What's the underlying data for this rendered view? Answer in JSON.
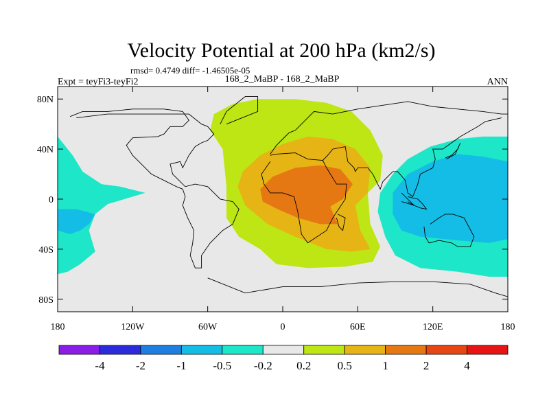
{
  "chart_data": {
    "type": "contour-map",
    "title": "Velocity Potential at 200 hPa (km2/s)",
    "stats": "rmsd= 0.4749 diff= -1.46505e-05",
    "left_label": "Expt = teyFi3-teyFi2",
    "center_label": "168_2_MaBP - 168_2_MaBP",
    "right_label": "ANN",
    "lon_range": [
      -180,
      180
    ],
    "lat_range": [
      -90,
      90
    ],
    "x_ticks": [
      {
        "value": -180,
        "label": "180"
      },
      {
        "value": -120,
        "label": "120W"
      },
      {
        "value": -60,
        "label": "60W"
      },
      {
        "value": 0,
        "label": "0"
      },
      {
        "value": 60,
        "label": "60E"
      },
      {
        "value": 120,
        "label": "120E"
      },
      {
        "value": 180,
        "label": "180"
      }
    ],
    "y_ticks": [
      {
        "value": 80,
        "label": "80N"
      },
      {
        "value": 40,
        "label": "40N"
      },
      {
        "value": 0,
        "label": "0"
      },
      {
        "value": -40,
        "label": "40S"
      },
      {
        "value": -80,
        "label": "80S"
      }
    ],
    "colorbar": {
      "colors": [
        "#8a1ee6",
        "#2b2bdc",
        "#1f7fe0",
        "#14bde6",
        "#1ee6c8",
        "#e8e8e8",
        "#bde614",
        "#e6b414",
        "#e67814",
        "#e64614",
        "#e61414"
      ],
      "labels": [
        "-4",
        "-2",
        "-1",
        "-0.5",
        "-0.2",
        "0.2",
        "0.5",
        "1",
        "2",
        "4"
      ]
    },
    "regions": [
      {
        "level": "0.2 to 0.5",
        "color": "#bde614",
        "points": [
          [
            -55,
            68
          ],
          [
            -40,
            76
          ],
          [
            -20,
            80
          ],
          [
            10,
            80
          ],
          [
            35,
            77
          ],
          [
            55,
            70
          ],
          [
            70,
            55
          ],
          [
            80,
            35
          ],
          [
            78,
            15
          ],
          [
            68,
            5
          ],
          [
            70,
            -20
          ],
          [
            78,
            -38
          ],
          [
            72,
            -50
          ],
          [
            50,
            -54
          ],
          [
            20,
            -55
          ],
          [
            -5,
            -52
          ],
          [
            -18,
            -40
          ],
          [
            -35,
            -30
          ],
          [
            -45,
            -15
          ],
          [
            -45,
            10
          ],
          [
            -48,
            40
          ],
          [
            -58,
            55
          ]
        ]
      },
      {
        "level": "0.5 to 1",
        "color": "#e6b414",
        "points": [
          [
            -32,
            22
          ],
          [
            -18,
            35
          ],
          [
            0,
            44
          ],
          [
            20,
            50
          ],
          [
            40,
            48
          ],
          [
            58,
            40
          ],
          [
            70,
            25
          ],
          [
            68,
            5
          ],
          [
            58,
            -5
          ],
          [
            62,
            -25
          ],
          [
            70,
            -40
          ],
          [
            55,
            -42
          ],
          [
            35,
            -40
          ],
          [
            10,
            -30
          ],
          [
            -12,
            -20
          ],
          [
            -30,
            -5
          ],
          [
            -36,
            10
          ]
        ]
      },
      {
        "level": "1 to 2",
        "color": "#e67814",
        "points": [
          [
            -18,
            8
          ],
          [
            -8,
            18
          ],
          [
            10,
            25
          ],
          [
            30,
            27
          ],
          [
            46,
            24
          ],
          [
            56,
            12
          ],
          [
            48,
            0
          ],
          [
            38,
            -6
          ],
          [
            44,
            -20
          ],
          [
            30,
            -20
          ],
          [
            12,
            -15
          ],
          [
            -4,
            -8
          ],
          [
            -16,
            -2
          ]
        ]
      },
      {
        "level": "-0.5 to -0.2",
        "color": "#1ee6c8",
        "points": [
          [
            -180,
            50
          ],
          [
            -168,
            35
          ],
          [
            -160,
            22
          ],
          [
            -145,
            12
          ],
          [
            -130,
            10
          ],
          [
            -110,
            5
          ],
          [
            -140,
            -4
          ],
          [
            -150,
            -12
          ],
          [
            -155,
            -25
          ],
          [
            -150,
            -42
          ],
          [
            -162,
            -52
          ],
          [
            -172,
            -58
          ],
          [
            -180,
            -60
          ]
        ]
      },
      {
        "level": "-1 to -0.5",
        "color": "#14bde6",
        "points": [
          [
            -180,
            -8
          ],
          [
            -165,
            -8
          ],
          [
            -150,
            -12
          ],
          [
            -155,
            -20
          ],
          [
            -162,
            -25
          ],
          [
            -170,
            -28
          ],
          [
            -180,
            -25
          ]
        ]
      },
      {
        "level": "-0.5 to -0.2",
        "color": "#1ee6c8",
        "points": [
          [
            180,
            50
          ],
          [
            160,
            50
          ],
          [
            140,
            48
          ],
          [
            118,
            42
          ],
          [
            100,
            32
          ],
          [
            88,
            20
          ],
          [
            78,
            5
          ],
          [
            76,
            -10
          ],
          [
            82,
            -30
          ],
          [
            90,
            -45
          ],
          [
            110,
            -55
          ],
          [
            140,
            -58
          ],
          [
            165,
            -62
          ],
          [
            180,
            -62
          ]
        ]
      },
      {
        "level": "-1 to -0.5",
        "color": "#14bde6",
        "points": [
          [
            180,
            30
          ],
          [
            160,
            34
          ],
          [
            140,
            36
          ],
          [
            120,
            30
          ],
          [
            100,
            20
          ],
          [
            88,
            5
          ],
          [
            88,
            -12
          ],
          [
            95,
            -25
          ],
          [
            110,
            -30
          ],
          [
            140,
            -33
          ],
          [
            165,
            -35
          ],
          [
            180,
            -32
          ]
        ]
      }
    ],
    "coastlines": [
      [
        [
          -170,
          66
        ],
        [
          -160,
          70
        ],
        [
          -140,
          70
        ],
        [
          -120,
          72
        ],
        [
          -95,
          72
        ],
        [
          -80,
          70
        ],
        [
          -75,
          63
        ],
        [
          -80,
          58
        ],
        [
          -90,
          58
        ],
        [
          -95,
          52
        ],
        [
          -100,
          50
        ],
        [
          -120,
          49
        ],
        [
          -125,
          43
        ],
        [
          -120,
          35
        ],
        [
          -110,
          25
        ],
        [
          -105,
          20
        ],
        [
          -95,
          15
        ],
        [
          -85,
          10
        ],
        [
          -80,
          8
        ],
        [
          -78,
          2
        ],
        [
          -80,
          -5
        ],
        [
          -76,
          -15
        ],
        [
          -71,
          -25
        ],
        [
          -72,
          -35
        ],
        [
          -74,
          -45
        ],
        [
          -70,
          -55
        ],
        [
          -65,
          -55
        ],
        [
          -65,
          -45
        ],
        [
          -58,
          -35
        ],
        [
          -48,
          -25
        ],
        [
          -40,
          -20
        ],
        [
          -35,
          -8
        ],
        [
          -40,
          -2
        ],
        [
          -50,
          0
        ],
        [
          -60,
          10
        ],
        [
          -70,
          12
        ],
        [
          -78,
          10
        ],
        [
          -83,
          15
        ],
        [
          -88,
          20
        ],
        [
          -90,
          28
        ],
        [
          -82,
          30
        ],
        [
          -80,
          25
        ],
        [
          -75,
          35
        ],
        [
          -70,
          42
        ],
        [
          -65,
          45
        ],
        [
          -60,
          47
        ],
        [
          -55,
          52
        ],
        [
          -60,
          58
        ],
        [
          -65,
          60
        ],
        [
          -75,
          68
        ],
        [
          -90,
          68
        ],
        [
          -110,
          68
        ],
        [
          -140,
          68
        ],
        [
          -165,
          65
        ]
      ],
      [
        [
          -50,
          60
        ],
        [
          -45,
          70
        ],
        [
          -30,
          82
        ],
        [
          -20,
          82
        ],
        [
          -20,
          70
        ],
        [
          -45,
          60
        ]
      ],
      [
        [
          -10,
          35
        ],
        [
          -5,
          36
        ],
        [
          10,
          37
        ],
        [
          20,
          32
        ],
        [
          32,
          31
        ],
        [
          35,
          25
        ],
        [
          43,
          12
        ],
        [
          51,
          12
        ],
        [
          50,
          0
        ],
        [
          40,
          -15
        ],
        [
          35,
          -25
        ],
        [
          20,
          -35
        ],
        [
          15,
          -28
        ],
        [
          12,
          -10
        ],
        [
          9,
          2
        ],
        [
          0,
          5
        ],
        [
          -10,
          5
        ],
        [
          -15,
          12
        ],
        [
          -17,
          20
        ],
        [
          -10,
          30
        ]
      ],
      [
        [
          -10,
          36
        ],
        [
          -5,
          43
        ],
        [
          0,
          48
        ],
        [
          5,
          53
        ],
        [
          10,
          55
        ],
        [
          15,
          60
        ],
        [
          20,
          65
        ],
        [
          25,
          70
        ],
        [
          40,
          68
        ],
        [
          60,
          72
        ],
        [
          80,
          75
        ],
        [
          100,
          78
        ],
        [
          120,
          74
        ],
        [
          140,
          72
        ],
        [
          160,
          70
        ],
        [
          175,
          68
        ],
        [
          180,
          68
        ]
      ],
      [
        [
          32,
          31
        ],
        [
          36,
          35
        ],
        [
          40,
          40
        ],
        [
          50,
          42
        ],
        [
          52,
          30
        ],
        [
          57,
          25
        ],
        [
          58,
          22
        ],
        [
          60,
          25
        ],
        [
          68,
          25
        ],
        [
          72,
          20
        ],
        [
          78,
          8
        ],
        [
          80,
          14
        ],
        [
          88,
          22
        ],
        [
          92,
          22
        ],
        [
          98,
          15
        ],
        [
          100,
          5
        ],
        [
          104,
          2
        ],
        [
          108,
          12
        ],
        [
          110,
          20
        ],
        [
          120,
          25
        ],
        [
          122,
          32
        ],
        [
          120,
          40
        ],
        [
          128,
          40
        ],
        [
          135,
          45
        ],
        [
          142,
          50
        ],
        [
          156,
          58
        ],
        [
          162,
          62
        ],
        [
          175,
          65
        ]
      ],
      [
        [
          113,
          -22
        ],
        [
          114,
          -30
        ],
        [
          117,
          -35
        ],
        [
          125,
          -33
        ],
        [
          135,
          -35
        ],
        [
          140,
          -38
        ],
        [
          150,
          -38
        ],
        [
          153,
          -30
        ],
        [
          145,
          -15
        ],
        [
          136,
          -12
        ],
        [
          130,
          -12
        ],
        [
          125,
          -15
        ],
        [
          118,
          -20
        ]
      ],
      [
        [
          44,
          -12
        ],
        [
          50,
          -15
        ],
        [
          48,
          -25
        ],
        [
          45,
          -22
        ],
        [
          43,
          -15
        ]
      ],
      [
        [
          95,
          5
        ],
        [
          105,
          -5
        ],
        [
          100,
          -2
        ]
      ],
      [
        [
          95,
          -2
        ],
        [
          105,
          -5
        ],
        [
          110,
          -7
        ],
        [
          115,
          -8
        ],
        [
          112,
          -4
        ],
        [
          108,
          0
        ],
        [
          100,
          2
        ]
      ],
      [
        [
          130,
          33
        ],
        [
          135,
          35
        ],
        [
          140,
          40
        ],
        [
          142,
          45
        ],
        [
          138,
          36
        ],
        [
          131,
          32
        ]
      ],
      [
        [
          -60,
          -63
        ],
        [
          -30,
          -75
        ],
        [
          0,
          -70
        ],
        [
          30,
          -70
        ],
        [
          60,
          -67
        ],
        [
          90,
          -66
        ],
        [
          120,
          -66
        ],
        [
          150,
          -68
        ],
        [
          170,
          -75
        ],
        [
          180,
          -78
        ]
      ]
    ]
  }
}
